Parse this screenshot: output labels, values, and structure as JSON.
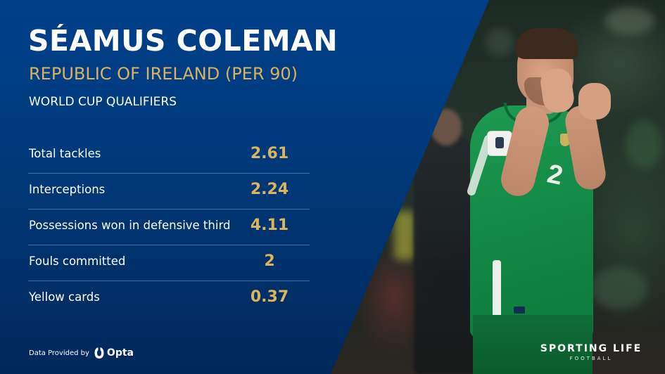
{
  "header": {
    "title": "SÉAMUS COLEMAN",
    "subtitle": "REPUBLIC OF IRELAND (PER 90)",
    "competition": "WORLD CUP QUALIFIERS"
  },
  "stats": [
    {
      "label": "Total tackles",
      "value": "2.61"
    },
    {
      "label": "Interceptions",
      "value": "2.24"
    },
    {
      "label": "Possessions won in defensive third",
      "value": "4.11"
    },
    {
      "label": "Fouls committed",
      "value": "2"
    },
    {
      "label": "Yellow cards",
      "value": "0.37"
    }
  ],
  "footer": {
    "data_provided_by": "Data Provided by",
    "provider_name": "Opta",
    "provider_icon": "opta-logo-icon"
  },
  "brand": {
    "name": "SPORTING LIFE",
    "sub": "FOOTBALL"
  },
  "colors": {
    "panel_blue": "#003a7c",
    "accent_gold": "#d9b45c",
    "text_white": "#ffffff"
  }
}
